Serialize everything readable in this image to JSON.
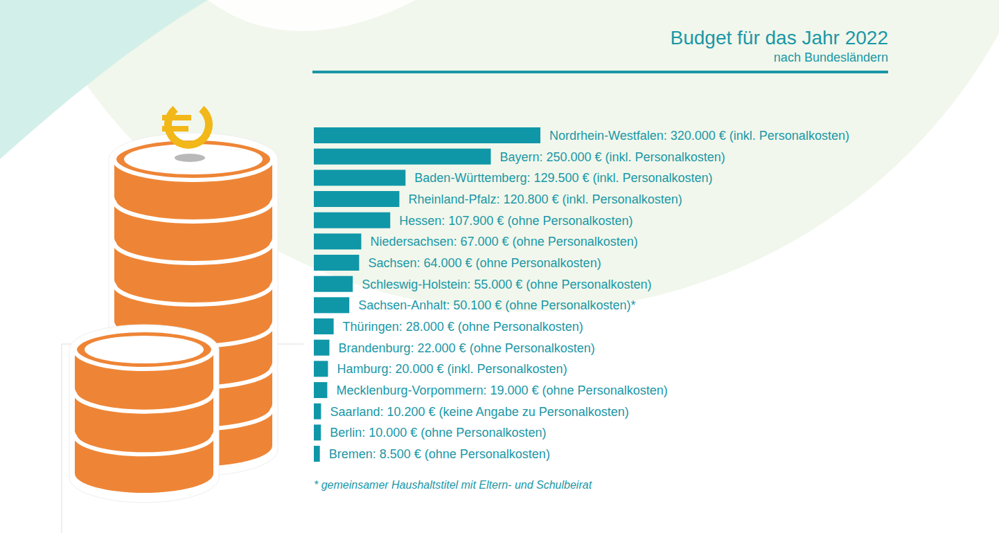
{
  "chart_data": {
    "type": "bar",
    "title": "Budget für das Jahr 2022",
    "subtitle": "nach Bundesländern",
    "orientation": "horizontal",
    "categories": [
      "Nordrhein-Westfalen:",
      "Bayern:",
      "Baden-Württemberg:",
      "Rheinland-Pfalz:",
      "Hessen:",
      "Niedersachsen:",
      "Sachsen:",
      "Schleswig-Holstein:",
      "Sachsen-Anhalt:",
      "Thüringen:",
      "Brandenburg:",
      "Hamburg:",
      "Mecklenburg-Vorpommern:",
      "Saarland:",
      "Berlin:",
      "Bremen:"
    ],
    "values": [
      320000,
      250000,
      129500,
      120800,
      107900,
      67000,
      64000,
      55000,
      50100,
      28000,
      22000,
      20000,
      19000,
      10200,
      10000,
      8500
    ],
    "value_labels": [
      "320.000 €",
      "250.000 €",
      "129.500 €",
      "120.800 €",
      "107.900 €",
      "67.000 €",
      "64.000 €",
      "55.000 €",
      "50.100 €",
      "28.000 €",
      "22.000 €",
      "20.000 €",
      "19.000 €",
      "10.200 €",
      "10.000 €",
      "8.500 €"
    ],
    "annotations": [
      "(inkl. Personalkosten)",
      "(inkl. Personalkosten)",
      "(inkl. Personalkosten)",
      "(inkl. Personalkosten)",
      "(ohne Personalkosten)",
      "(ohne Personalkosten)",
      "(ohne Personalkosten)",
      "(ohne Personalkosten)",
      "(ohne Personalkosten)*",
      "(ohne Personalkosten)",
      "(ohne Personalkosten)",
      "(inkl. Personalkosten)",
      "(ohne Personalkosten)",
      "(keine Angabe zu Personalkosten)",
      "(ohne Personalkosten)",
      "(ohne Personalkosten)"
    ],
    "footnote": "* gemeinsamer Haushaltstitel mit Eltern- und Schulbeirat",
    "color": "#0f97a8",
    "xlim": [
      0,
      320000
    ],
    "xticks": [],
    "tick_labels": false,
    "grid": false,
    "data_labels": true
  }
}
